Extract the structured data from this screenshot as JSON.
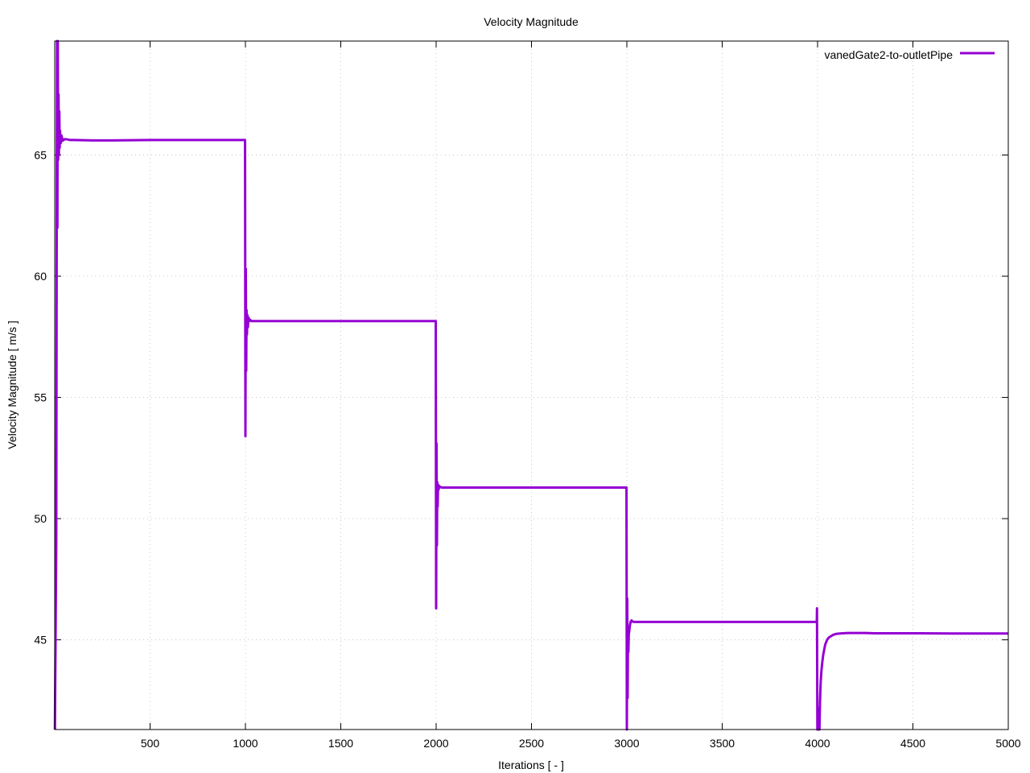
{
  "chart_data": {
    "type": "line",
    "title": "Velocity Magnitude",
    "xlabel": "Iterations [ - ]",
    "ylabel": "Velocity Magnitude [ m/s ]",
    "xlim": [
      0,
      5000
    ],
    "ylim": [
      41.3,
      69.7
    ],
    "xticks": [
      500,
      1000,
      1500,
      2000,
      2500,
      3000,
      3500,
      4000,
      4500,
      5000
    ],
    "yticks": [
      45,
      50,
      55,
      60,
      65
    ],
    "grid": true,
    "legend_position": "top-right",
    "series": [
      {
        "name": "vanedGate2-to-outletPipe",
        "color": "#9400d3",
        "x": [
          1,
          8,
          10,
          12,
          14,
          16,
          18,
          20,
          22,
          24,
          26,
          28,
          30,
          33,
          36,
          40,
          45,
          50,
          60,
          80,
          100,
          200,
          300,
          500,
          700,
          900,
          998,
          1000,
          1002,
          1004,
          1006,
          1008,
          1010,
          1013,
          1016,
          1020,
          1025,
          1030,
          1040,
          1060,
          1100,
          1200,
          1300,
          1500,
          1700,
          1900,
          1998,
          2000,
          2002,
          2004,
          2006,
          2008,
          2010,
          2013,
          2016,
          2020,
          2025,
          2030,
          2040,
          2060,
          2100,
          2200,
          2300,
          2500,
          2700,
          2900,
          2998,
          3000,
          3002,
          3004,
          3006,
          3008,
          3010,
          3013,
          3016,
          3020,
          3025,
          3030,
          3040,
          3060,
          3100,
          3200,
          3300,
          3500,
          3700,
          3900,
          3995,
          3996,
          3997,
          3999,
          4002,
          4005,
          4008,
          4010,
          4013,
          4016,
          4020,
          4025,
          4030,
          4040,
          4050,
          4060,
          4080,
          4100,
          4130,
          4160,
          4200,
          4250,
          4300,
          4400,
          4500,
          4700,
          5000
        ],
        "y": [
          41.3,
          49,
          59.7,
          69.7,
          62,
          69.7,
          64.8,
          67.5,
          65.0,
          66.8,
          65.3,
          66.0,
          65.6,
          65.5,
          65.8,
          65.6,
          65.6,
          65.65,
          65.65,
          65.62,
          65.62,
          65.6,
          65.6,
          65.62,
          65.62,
          65.62,
          65.62,
          53.4,
          60.3,
          56.1,
          58.6,
          57.6,
          58.4,
          57.9,
          58.3,
          58.15,
          58.2,
          58.15,
          58.15,
          58.15,
          58.15,
          58.15,
          58.15,
          58.15,
          58.15,
          58.15,
          58.15,
          46.3,
          53.1,
          48.9,
          51.5,
          50.5,
          51.4,
          51.2,
          51.35,
          51.3,
          51.3,
          51.28,
          51.28,
          51.28,
          51.28,
          51.28,
          51.28,
          51.28,
          51.28,
          51.28,
          51.28,
          41.3,
          46.7,
          42.6,
          45.3,
          44.5,
          45.2,
          45.4,
          45.6,
          45.75,
          45.8,
          45.75,
          45.74,
          45.74,
          45.74,
          45.74,
          45.74,
          45.74,
          45.74,
          45.74,
          45.74,
          45.74,
          46.3,
          41.3,
          42.2,
          41.3,
          41.3,
          41.3,
          42.5,
          43.2,
          43.7,
          44.1,
          44.4,
          44.8,
          45.0,
          45.1,
          45.2,
          45.25,
          45.27,
          45.28,
          45.28,
          45.28,
          45.27,
          45.27,
          45.27,
          45.26,
          45.26
        ]
      }
    ]
  }
}
